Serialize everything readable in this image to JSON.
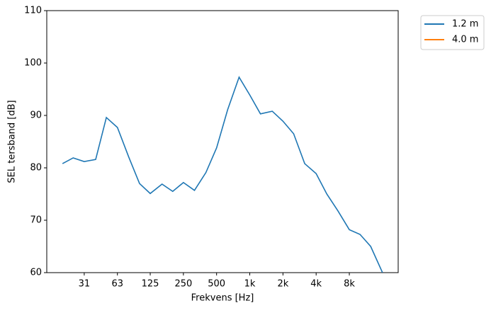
{
  "chart_data": {
    "type": "line",
    "xlabel": "Frekvens [Hz]",
    "ylabel": "SEL tersband [dB]",
    "x": [
      20,
      25,
      31.5,
      40,
      50,
      63,
      80,
      100,
      125,
      160,
      200,
      250,
      315,
      400,
      500,
      630,
      800,
      1000,
      1250,
      1600,
      2000,
      2500,
      3150,
      4000,
      5000,
      6300,
      8000,
      10000,
      12500,
      16000
    ],
    "series": [
      {
        "name": "1.2 m",
        "color": "#1f77b4",
        "values": [
          80.8,
          81.9,
          81.2,
          81.6,
          89.6,
          87.7,
          82.0,
          77.0,
          75.1,
          76.9,
          75.5,
          77.2,
          75.7,
          79.1,
          83.8,
          91.1,
          97.3,
          93.9,
          90.3,
          90.8,
          88.9,
          86.5,
          80.8,
          78.9,
          75.0,
          71.8,
          68.2,
          67.3,
          65.0,
          60
        ]
      },
      {
        "name": "4.0 m",
        "color": "#ff7f0e",
        "values": [
          null,
          null,
          null,
          null,
          null,
          null,
          null,
          null,
          null,
          null,
          null,
          null,
          null,
          null,
          null,
          null,
          null,
          null,
          null,
          null,
          null,
          null,
          null,
          null,
          null,
          null,
          null,
          null,
          null,
          null
        ]
      }
    ],
    "xscale": "log",
    "xlim": [
      14.4,
      22200
    ],
    "xticks": [
      {
        "value": 31.5,
        "label": "31"
      },
      63,
      125,
      250,
      500,
      {
        "value": 1000,
        "label": "1k"
      },
      {
        "value": 2000,
        "label": "2k"
      },
      {
        "value": 4000,
        "label": "4k"
      },
      {
        "value": 8000,
        "label": "8k"
      }
    ],
    "ylim": [
      60,
      110
    ],
    "yticks": [
      60,
      70,
      80,
      90,
      100,
      110
    ],
    "grid": false,
    "legend": "outside upper right"
  }
}
